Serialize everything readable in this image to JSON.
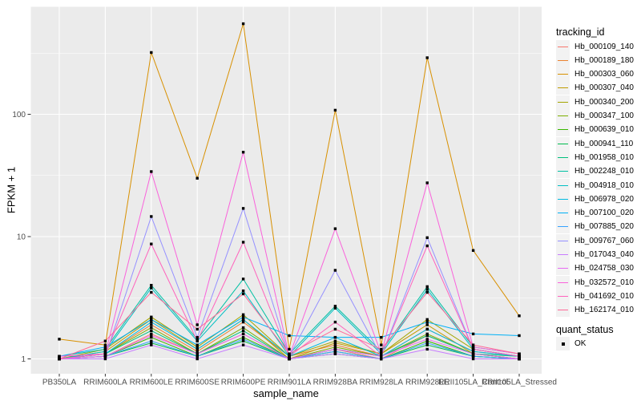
{
  "figure": {
    "background": "#FFFFFF"
  },
  "chart_data": {
    "type": "line",
    "title": "",
    "xlabel": "sample_name",
    "ylabel": "FPKM + 1",
    "yscale": "log10",
    "yticks": [
      1,
      10,
      100
    ],
    "ylim": [
      0.9,
      700
    ],
    "grid": "on",
    "panel_background": "#EBEBEB",
    "gridline_color": "#FFFFFF",
    "tick_color": "#333333",
    "tick_label_color": "#4D4D4D",
    "point_color": "#000000",
    "point_shape": "square",
    "legend_key_fill": "#F2F2F2",
    "categories": [
      "PB350LA",
      "RRIM600LA",
      "RRIM600LE",
      "RRIM600SE",
      "RRIM600PE",
      "RRIM901LA",
      "RRIM928BA",
      "RRIM928LA",
      "RRIM928LE",
      "RRII105LA_Control",
      "RRII105LA_Stressed"
    ],
    "legend": {
      "title": "tracking_id",
      "position": "right"
    },
    "quant_legend": {
      "title": "quant_status",
      "items": [
        {
          "label": "OK",
          "marker": "black-square"
        }
      ]
    },
    "series": [
      {
        "name": "Hb_000109_140",
        "color": "#F8766D",
        "values": [
          1.0,
          1.05,
          1.6,
          1.1,
          1.6,
          1.0,
          1.2,
          1.0,
          1.55,
          1.1,
          1.0
        ]
      },
      {
        "name": "Hb_000189_180",
        "color": "#EA8331",
        "values": [
          1.0,
          1.1,
          1.9,
          1.15,
          2.0,
          1.05,
          1.3,
          1.05,
          1.75,
          1.15,
          1.05
        ]
      },
      {
        "name": "Hb_000303_060",
        "color": "#D89000",
        "values": [
          1.45,
          1.3,
          320,
          30,
          550,
          1.2,
          108,
          1.3,
          290,
          7.7,
          2.25
        ]
      },
      {
        "name": "Hb_000307_040",
        "color": "#C09B00",
        "values": [
          1.0,
          1.15,
          2.1,
          1.2,
          2.1,
          1.0,
          1.35,
          1.1,
          1.9,
          1.1,
          1.0
        ]
      },
      {
        "name": "Hb_000340_200",
        "color": "#A3A500",
        "values": [
          1.0,
          1.2,
          2.2,
          1.25,
          2.3,
          1.05,
          1.4,
          1.1,
          2.1,
          1.2,
          1.05
        ]
      },
      {
        "name": "Hb_000347_100",
        "color": "#7CAE00",
        "values": [
          1.0,
          1.1,
          1.8,
          1.1,
          1.8,
          1.0,
          1.25,
          1.05,
          1.6,
          1.1,
          1.0
        ]
      },
      {
        "name": "Hb_000639_010",
        "color": "#39B600",
        "values": [
          1.0,
          1.05,
          1.5,
          1.05,
          1.5,
          1.0,
          1.15,
          1.0,
          1.4,
          1.05,
          1.0
        ]
      },
      {
        "name": "Hb_000941_110",
        "color": "#00BB4E",
        "values": [
          1.0,
          1.05,
          1.35,
          1.05,
          1.4,
          1.0,
          1.1,
          1.0,
          1.3,
          1.05,
          1.0
        ]
      },
      {
        "name": "Hb_001958_010",
        "color": "#00BF7D",
        "values": [
          1.0,
          1.1,
          1.7,
          1.1,
          1.7,
          1.0,
          1.2,
          1.05,
          1.55,
          1.1,
          1.05
        ]
      },
      {
        "name": "Hb_002248_010",
        "color": "#00C1A3",
        "values": [
          1.05,
          1.2,
          4.0,
          1.45,
          4.5,
          1.1,
          2.7,
          1.15,
          3.9,
          1.25,
          1.1
        ]
      },
      {
        "name": "Hb_004918_010",
        "color": "#00BFC4",
        "values": [
          1.0,
          1.15,
          3.8,
          1.4,
          3.6,
          1.05,
          2.6,
          1.1,
          3.7,
          1.2,
          1.05
        ]
      },
      {
        "name": "Hb_006978_020",
        "color": "#00BAE0",
        "values": [
          1.0,
          1.1,
          2.0,
          1.2,
          2.1,
          1.05,
          1.5,
          1.05,
          1.75,
          1.15,
          1.05
        ]
      },
      {
        "name": "Hb_007100_020",
        "color": "#00B0F6",
        "values": [
          1.05,
          1.25,
          2.1,
          1.3,
          2.2,
          1.55,
          1.5,
          1.5,
          2.0,
          1.6,
          1.55
        ]
      },
      {
        "name": "Hb_007885_020",
        "color": "#35A2FF",
        "values": [
          1.0,
          1.05,
          1.4,
          1.05,
          1.45,
          1.0,
          1.15,
          1.0,
          1.35,
          1.05,
          1.0
        ]
      },
      {
        "name": "Hb_009767_060",
        "color": "#9590FF",
        "values": [
          1.0,
          1.05,
          14.6,
          1.5,
          17.0,
          1.05,
          5.3,
          1.05,
          9.8,
          1.2,
          1.05
        ]
      },
      {
        "name": "Hb_017043_040",
        "color": "#C77CFF",
        "values": [
          1.0,
          1.0,
          1.3,
          1.0,
          1.3,
          1.0,
          1.1,
          1.0,
          1.2,
          1.0,
          1.0
        ]
      },
      {
        "name": "Hb_024758_030",
        "color": "#E76BF3",
        "values": [
          1.0,
          1.05,
          1.55,
          1.1,
          1.6,
          1.0,
          1.2,
          1.05,
          1.45,
          1.1,
          1.0
        ]
      },
      {
        "name": "Hb_032572_010",
        "color": "#FA62DB",
        "values": [
          1.05,
          1.1,
          34.0,
          1.9,
          49.0,
          1.05,
          11.6,
          1.1,
          27.5,
          1.25,
          1.1
        ]
      },
      {
        "name": "Hb_041692_010",
        "color": "#FF62BC",
        "values": [
          1.0,
          1.1,
          8.7,
          1.4,
          9.0,
          1.05,
          2.0,
          1.05,
          8.4,
          1.2,
          1.05
        ]
      },
      {
        "name": "Hb_162174_010",
        "color": "#FF6A98",
        "values": [
          1.0,
          1.4,
          3.5,
          1.75,
          3.4,
          1.1,
          1.75,
          1.2,
          3.5,
          1.3,
          1.1
        ]
      }
    ]
  }
}
